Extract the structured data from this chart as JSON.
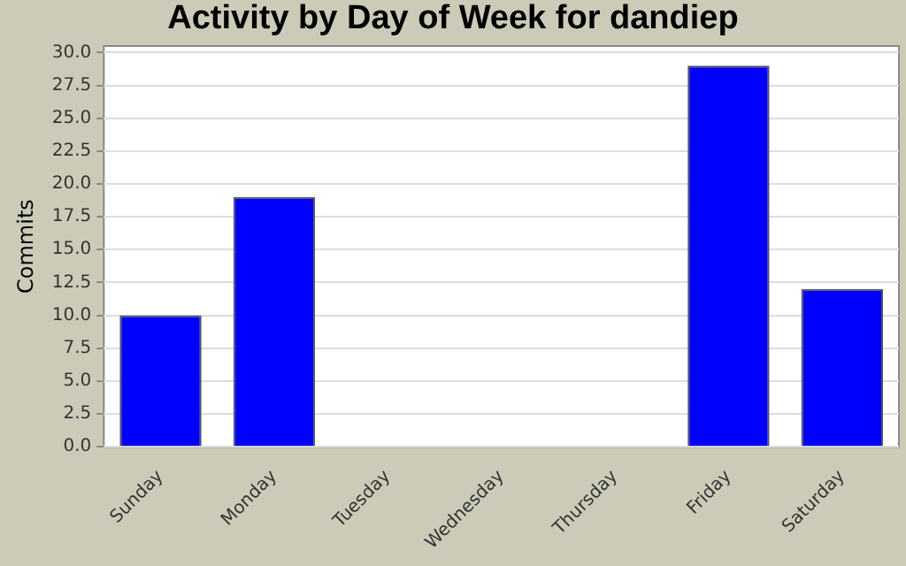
{
  "chart_data": {
    "type": "bar",
    "title": "Activity by Day of Week for dandiep",
    "ylabel": "Commits",
    "categories": [
      "Sunday",
      "Monday",
      "Tuesday",
      "Wednesday",
      "Thursday",
      "Friday",
      "Saturday"
    ],
    "values": [
      10,
      19,
      0,
      0,
      0,
      29,
      12
    ],
    "color": "#0000ff",
    "ylim": [
      0,
      30.5
    ],
    "yticks": [
      {
        "value": 0,
        "label": "0.0"
      },
      {
        "value": 2.5,
        "label": "2.5"
      },
      {
        "value": 5,
        "label": "5.0"
      },
      {
        "value": 7.5,
        "label": "7.5"
      },
      {
        "value": 10,
        "label": "10.0"
      },
      {
        "value": 12.5,
        "label": "12.5"
      },
      {
        "value": 15,
        "label": "15.0"
      },
      {
        "value": 17.5,
        "label": "17.5"
      },
      {
        "value": 20,
        "label": "20.0"
      },
      {
        "value": 22.5,
        "label": "22.5"
      },
      {
        "value": 25,
        "label": "25.0"
      },
      {
        "value": 27.5,
        "label": "27.5"
      },
      {
        "value": 30,
        "label": "30.0"
      }
    ],
    "grid": "y"
  }
}
